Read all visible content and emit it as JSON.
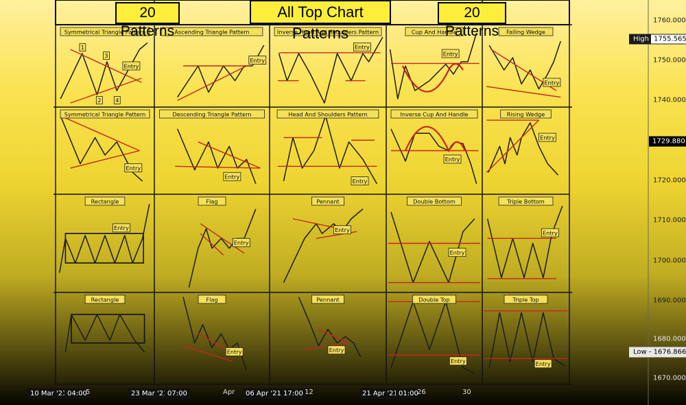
{
  "header": {
    "title": "All Top Chart Patterns",
    "left_badge": "20 Patterns",
    "right_badge": "20 Patterns"
  },
  "price_axis": {
    "ticks": [
      "1760.000",
      "1750.000",
      "1740.000",
      "1730.000",
      "1720.000",
      "1710.000",
      "1700.000",
      "1690.000",
      "1680.000",
      "1670.000"
    ]
  },
  "price_flags": {
    "high_label": "High",
    "high_value": "1755.565",
    "current_value": "1729.880",
    "low_label": "Low",
    "low_value": "1676.866"
  },
  "time_axis": {
    "labels": [
      "10 Mar '21",
      "04:00",
      "5",
      "23 Mar '21",
      "07:00",
      "Apr",
      "06 Apr '21",
      "17:00",
      "12",
      "21 Apr '21",
      "01:00",
      "26",
      "30"
    ]
  },
  "colors": {
    "line": "#1c1c1c",
    "trend": "#c4271d",
    "box_bg": "#f4e05a",
    "grid": "#111111"
  },
  "chart_data": {
    "type": "pattern-grid",
    "title": "All Top Chart Patterns",
    "rows": 4,
    "cols": 5,
    "patterns": [
      {
        "name": "Symmetrical Triangle Pattern",
        "entry": "Entry",
        "markers": [
          "1",
          "2",
          "3",
          "4"
        ]
      },
      {
        "name": "Ascending Triangle Pattern",
        "entry": "Entry"
      },
      {
        "name": "Inverse Head And Shoulders Pattern",
        "entry": "Entry"
      },
      {
        "name": "Cup And Handle",
        "entry": "Entry"
      },
      {
        "name": "Falling Wedge",
        "entry": "Entry"
      },
      {
        "name": "Symmetrical Triangle Pattern",
        "entry": "Entry"
      },
      {
        "name": "Descending Triangle Pattern",
        "entry": "Entry"
      },
      {
        "name": "Head And Shoulders Pattern",
        "entry": "Entry"
      },
      {
        "name": "Inverse Cup And Handle",
        "entry": "Entry"
      },
      {
        "name": "Rising Wedge",
        "entry": "Entry"
      },
      {
        "name": "Rectangle",
        "entry": "Entry"
      },
      {
        "name": "Flag",
        "entry": "Entry"
      },
      {
        "name": "Pennant",
        "entry": "Entry"
      },
      {
        "name": "Double Bottom",
        "entry": "Entry"
      },
      {
        "name": "Triple Bottom",
        "entry": "Entry"
      },
      {
        "name": "Rectangle",
        "entry": "Entry"
      },
      {
        "name": "Flag",
        "entry": "Entry"
      },
      {
        "name": "Pennant",
        "entry": "Entry"
      },
      {
        "name": "Double Top",
        "entry": "Entry"
      },
      {
        "name": "Triple Top",
        "entry": "Entry"
      }
    ]
  }
}
